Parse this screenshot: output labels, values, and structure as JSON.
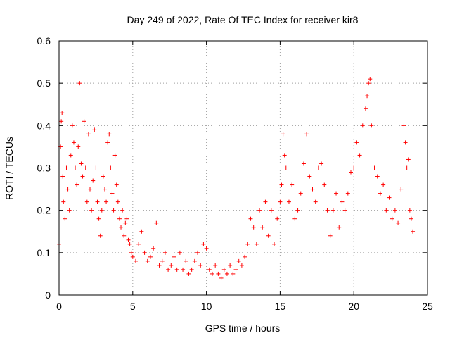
{
  "chart_data": {
    "type": "scatter",
    "title": "Day 249 of 2022, Rate Of TEC Index for receiver kir8",
    "xlabel": "GPS time / hours",
    "ylabel": "ROTI / TECUs",
    "xlim": [
      0,
      25
    ],
    "ylim": [
      0,
      0.6
    ],
    "xticks": [
      0,
      5,
      10,
      15,
      20,
      25
    ],
    "xtick_labels": [
      "0",
      "5",
      "10",
      "15",
      "20",
      "25"
    ],
    "yticks": [
      0,
      0.1,
      0.2,
      0.3,
      0.4,
      0.5,
      0.6
    ],
    "ytick_labels": [
      "0",
      "0.1",
      "0.2",
      "0.3",
      "0.4",
      "0.5",
      "0.6"
    ],
    "grid": true,
    "marker": "+",
    "series": [
      {
        "name": "ROTI",
        "color": "#ff0000",
        "x": [
          0.0,
          0.1,
          0.15,
          0.2,
          0.25,
          0.3,
          0.4,
          0.5,
          0.6,
          0.7,
          0.8,
          0.9,
          1.0,
          1.1,
          1.2,
          1.3,
          1.4,
          1.5,
          1.6,
          1.7,
          1.8,
          1.9,
          2.0,
          2.1,
          2.2,
          2.3,
          2.4,
          2.5,
          2.6,
          2.7,
          2.8,
          2.9,
          3.0,
          3.1,
          3.2,
          3.3,
          3.4,
          3.5,
          3.6,
          3.7,
          3.8,
          3.9,
          4.0,
          4.1,
          4.2,
          4.3,
          4.4,
          4.5,
          4.6,
          4.7,
          4.8,
          4.9,
          5.0,
          5.2,
          5.4,
          5.6,
          5.8,
          6.0,
          6.2,
          6.4,
          6.6,
          6.8,
          7.0,
          7.2,
          7.4,
          7.6,
          7.8,
          8.0,
          8.2,
          8.4,
          8.6,
          8.8,
          9.0,
          9.2,
          9.4,
          9.6,
          9.8,
          10.0,
          10.2,
          10.4,
          10.6,
          10.8,
          11.0,
          11.2,
          11.4,
          11.6,
          11.8,
          12.0,
          12.2,
          12.4,
          12.6,
          12.8,
          13.0,
          13.2,
          13.4,
          13.6,
          13.8,
          14.0,
          14.2,
          14.4,
          14.6,
          14.8,
          15.0,
          15.1,
          15.2,
          15.3,
          15.4,
          15.6,
          15.8,
          16.0,
          16.2,
          16.4,
          16.6,
          16.8,
          17.0,
          17.2,
          17.4,
          17.6,
          17.8,
          18.0,
          18.2,
          18.4,
          18.6,
          18.8,
          19.0,
          19.2,
          19.4,
          19.6,
          19.8,
          20.0,
          20.2,
          20.4,
          20.6,
          20.8,
          20.9,
          21.0,
          21.1,
          21.2,
          21.4,
          21.6,
          21.8,
          22.0,
          22.2,
          22.4,
          22.6,
          22.8,
          23.0,
          23.2,
          23.4,
          23.5,
          23.6,
          23.7,
          23.8,
          23.9,
          24.0
        ],
        "y": [
          0.12,
          0.35,
          0.41,
          0.43,
          0.28,
          0.22,
          0.18,
          0.3,
          0.25,
          0.2,
          0.33,
          0.4,
          0.36,
          0.3,
          0.26,
          0.35,
          0.5,
          0.31,
          0.28,
          0.41,
          0.3,
          0.22,
          0.38,
          0.25,
          0.2,
          0.27,
          0.39,
          0.3,
          0.22,
          0.18,
          0.14,
          0.2,
          0.28,
          0.25,
          0.22,
          0.36,
          0.38,
          0.3,
          0.24,
          0.2,
          0.33,
          0.26,
          0.22,
          0.18,
          0.16,
          0.2,
          0.14,
          0.17,
          0.18,
          0.13,
          0.12,
          0.1,
          0.09,
          0.08,
          0.12,
          0.15,
          0.1,
          0.08,
          0.09,
          0.11,
          0.17,
          0.07,
          0.08,
          0.1,
          0.06,
          0.07,
          0.09,
          0.06,
          0.1,
          0.06,
          0.08,
          0.05,
          0.06,
          0.08,
          0.1,
          0.07,
          0.12,
          0.11,
          0.06,
          0.05,
          0.07,
          0.05,
          0.04,
          0.06,
          0.05,
          0.07,
          0.05,
          0.06,
          0.08,
          0.07,
          0.09,
          0.12,
          0.18,
          0.16,
          0.12,
          0.2,
          0.16,
          0.22,
          0.14,
          0.2,
          0.12,
          0.18,
          0.22,
          0.26,
          0.38,
          0.33,
          0.3,
          0.22,
          0.26,
          0.18,
          0.2,
          0.24,
          0.31,
          0.38,
          0.28,
          0.25,
          0.22,
          0.3,
          0.31,
          0.26,
          0.2,
          0.14,
          0.2,
          0.24,
          0.16,
          0.22,
          0.2,
          0.24,
          0.29,
          0.3,
          0.36,
          0.33,
          0.4,
          0.44,
          0.47,
          0.5,
          0.51,
          0.4,
          0.3,
          0.28,
          0.24,
          0.26,
          0.2,
          0.23,
          0.18,
          0.2,
          0.17,
          0.25,
          0.4,
          0.36,
          0.3,
          0.32,
          0.2,
          0.18,
          0.15
        ]
      }
    ]
  }
}
